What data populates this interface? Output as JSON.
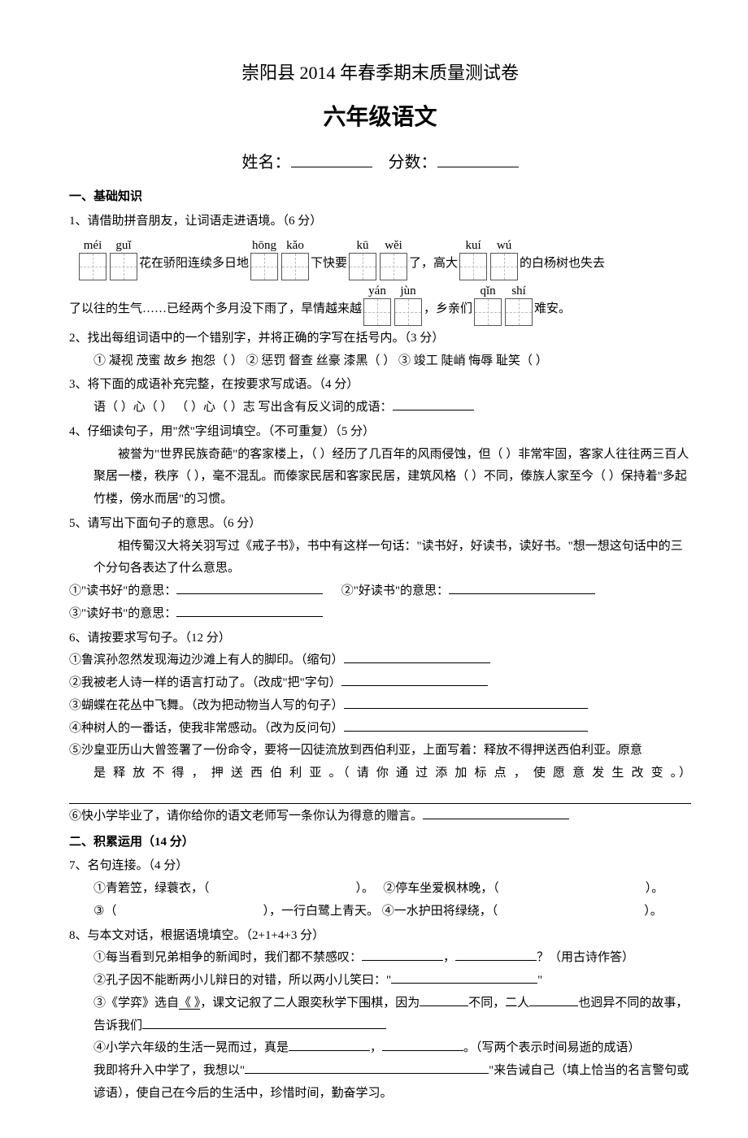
{
  "header": {
    "title1": "崇阳县 2014 年春季期末质量测试卷",
    "title2": "六年级语文",
    "name_label": "姓名：",
    "score_label": "分数："
  },
  "section1": {
    "heading": "一、基础知识",
    "q1": {
      "label": "1、请借助拼音朋友，让词语走进语境。（6 分）",
      "pinyin": {
        "p1": "méi",
        "p2": "guǐ",
        "p3": "hōng",
        "p4": "kǎo",
        "p5": "kū",
        "p6": "wěi",
        "p7": "kuí",
        "p8": "wú",
        "p9": "yán",
        "p10": "jùn",
        "p11": "qǐn",
        "p12": "shí"
      },
      "t1": "花在骄阳连续多日地",
      "t2": "下快要",
      "t3": "了，高大",
      "t4": "的白杨树也失去",
      "t5": "了以往的生气……已经两个多月没下雨了，旱情越来越",
      "t6": "，乡亲们",
      "t7": "难安。"
    },
    "q2": {
      "label": "2、找出每组词语中的一个错别字，并将正确的字写在括号内。（3 分）",
      "line1": "① 凝视  茂蜜  故乡  抱怨（    ）   ② 惩罚  督查  丝豪  漆黑（    ）  ③ 竣工  陡峭  悔辱  耻笑（    ）"
    },
    "q3": {
      "label": "3、将下面的成语补充完整，在按要求写成语。（4 分）",
      "line1": "语（   ）心（   ）       （   ）心（   ）志    写出含有反义词的成语："
    },
    "q4": {
      "label": "4、仔细读句子，用\"然\"字组词填空。（不可重复）（5 分）",
      "line1": "被誉为\"世界民族奇葩\"的客家楼上，（    ）经历了几百年的风雨侵蚀，但（    ）非常牢固，客家人往往两三百人聚居一楼，秩序（    ），毫不混乱。而傣家民居和客家民居，建筑风格（    ）不同，傣族人家至今（    ）保持着\"多起竹楼，傍水而居\"的习惯。"
    },
    "q5": {
      "label": "5、请写出下面句子的意思。（6 分）",
      "intro": "相传蜀汉大将关羽写过《戒子书》，书中有这样一句话：\"读书好，好读书，读好书。\"想一想这句话中的三个分句各表达了什么意思。",
      "p1": "①\"读书好\"的意思：",
      "p2": "②\"好读书\"的意思：",
      "p3": "③\"读好书\"的意思："
    },
    "q6": {
      "label": "6、请按要求写句子。（12 分）",
      "i1": "①鲁滨孙忽然发现海边沙滩上有人的脚印。（缩句）",
      "i2": "②我被老人诗一样的语言打动了。（改成\"把\"字句）",
      "i3": "③蝴蝶在花丛中飞舞。（改为把动物当人写的句子）",
      "i4": "④种树人的一番话，使我非常感动。（改为反问句）",
      "i5a": "⑤沙皇亚历山大曾签署了一份命令，要将一囚徒流放到西伯利亚，上面写着：释放不得押送西伯利亚。原意",
      "i5b": "是 释 放 不 得 ， 押 送 西 伯 利 亚 。（ 请 你 通 过 添 加 标 点 ， 使 愿 意 发 生 改 变 。）",
      "i6": "⑥快小学毕业了，请你给你的语文老师写一条你认为得意的赠言。"
    }
  },
  "section2": {
    "heading": "二、积累运用（14 分）",
    "q7": {
      "label": "7、名句连接。（4 分）",
      "i1a": "①青箬笠，绿蓑衣，（",
      "i1b": "）。",
      "i2a": "②停车坐爱枫林晚，（",
      "i2b": "）。",
      "i3a": "③（",
      "i3b": "），一行白鹭上青天。",
      "i4a": "④一水护田将绿绕，（",
      "i4b": "）。"
    },
    "q8": {
      "label": "8、与本文对话，根据语境填空。（2+1+4+3 分）",
      "i1a": "①每当看到兄弟相争的新闻时，我们都不禁感叹：",
      "i1b": "，",
      "i1c": "？（用古诗作答）",
      "i2a": "②孔子因不能断两小儿辩日的对错，所以两小儿笑曰：\"",
      "i2b": "\"",
      "i3a": "③《学弈》选自",
      "i3u": "《            》",
      "i3b": "，课文记叙了二人跟奕秋学下围棋，因为",
      "i3c": "不同，二人",
      "i3d": "也迥异不同的故事，告诉我们",
      "i4a": "④小学六年级的生活一晃而过，真是",
      "i4b": "，",
      "i4c": "。（写两个表示时间易逝的成语）",
      "i5a": "我即将升入中学了，我想以\"",
      "i5b": "\"来告诫自己（填上恰当的名言警句或谚语），使自己在今后的生活中，珍惜时间，勤奋学习。"
    }
  }
}
